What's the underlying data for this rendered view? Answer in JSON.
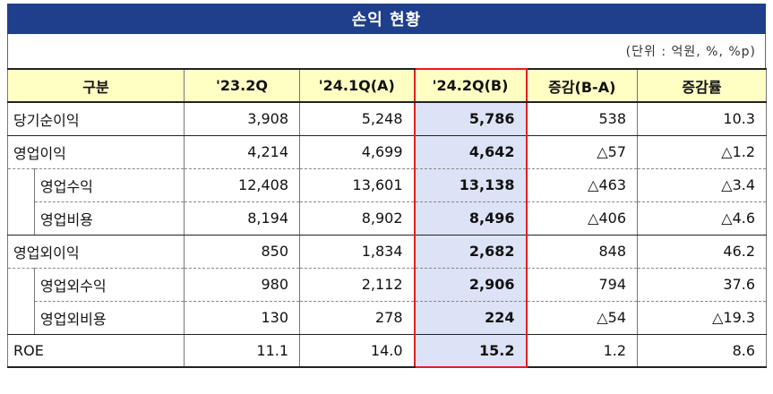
{
  "title": "손익 현황",
  "unit_note": "(단위 : 억원, %, %p)",
  "headers": [
    "구분",
    "'23.2Q",
    "'24.1Q(A)",
    "'24.2Q(B)",
    "증감(B-A)",
    "증감률"
  ],
  "rows": [
    {
      "label": "당기순이익",
      "values": [
        "3,908",
        "5,248",
        "5,786",
        "538",
        "10.3"
      ]
    },
    {
      "label": "영업이익",
      "values": [
        "4,214",
        "4,699",
        "4,642",
        "△57",
        "△1.2"
      ]
    },
    {
      "label": "영업수익",
      "values": [
        "12,408",
        "13,601",
        "13,138",
        "△463",
        "△3.4"
      ]
    },
    {
      "label": "영업비용",
      "values": [
        "8,194",
        "8,902",
        "8,496",
        "△406",
        "△4.6"
      ]
    },
    {
      "label": "영업외이익",
      "values": [
        "850",
        "1,834",
        "2,682",
        "848",
        "46.2"
      ]
    },
    {
      "label": "영업외수익",
      "values": [
        "980",
        "2,112",
        "2,906",
        "794",
        "37.6"
      ]
    },
    {
      "label": "영업외비용",
      "values": [
        "130",
        "278",
        "224",
        "△54",
        "△19.3"
      ]
    },
    {
      "label": "ROE",
      "values": [
        "11.1",
        "14.0",
        "15.2",
        "1.2",
        "8.6"
      ]
    }
  ],
  "colors": {
    "title_bg": "#1f3f8c",
    "header_bg": "#ffffc4",
    "highlight_bg": "#dde3f6",
    "highlight_border": "#e02020"
  }
}
